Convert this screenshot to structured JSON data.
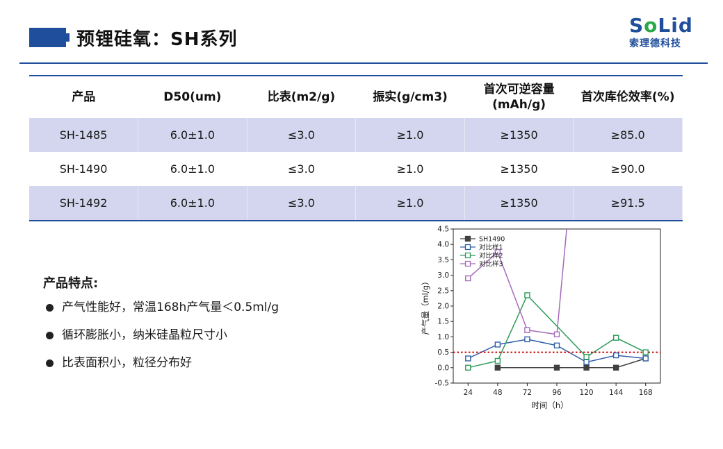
{
  "header": {
    "title": "预锂硅氧：SH系列"
  },
  "logo": {
    "mark_pre": "S",
    "mark_o": "o",
    "mark_li": "Li",
    "mark_d": "d",
    "cn": "索理德科技"
  },
  "table": {
    "headers": [
      {
        "line1": "产品",
        "line2": ""
      },
      {
        "line1": "D50(um)",
        "line2": ""
      },
      {
        "line1": "比表(m2/g)",
        "line2": ""
      },
      {
        "line1": "振实(g/cm3)",
        "line2": ""
      },
      {
        "line1": "首次可逆容量",
        "line2": "(mAh/g)"
      },
      {
        "line1": "首次库伦效率(%)",
        "line2": ""
      }
    ],
    "rows": [
      [
        "SH-1485",
        "6.0±1.0",
        "≤3.0",
        "≥1.0",
        "≥1350",
        "≥85.0"
      ],
      [
        "SH-1490",
        "6.0±1.0",
        "≤3.0",
        "≥1.0",
        "≥1350",
        "≥90.0"
      ],
      [
        "SH-1492",
        "6.0±1.0",
        "≤3.0",
        "≥1.0",
        "≥1350",
        "≥91.5"
      ]
    ]
  },
  "features": {
    "title": "产品特点:",
    "items": [
      "产气性能好，常温168h产气量＜0.5ml/g",
      "循环膨胀小，纳米硅晶粒尺寸小",
      "比表面积小，粒径分布好"
    ]
  },
  "chart_data": {
    "type": "line",
    "xlabel": "时间（h）",
    "ylabel": "产气量（ml/g）",
    "x": [
      24,
      48,
      72,
      96,
      120,
      144,
      168
    ],
    "x_tick_labels": [
      "24",
      "48",
      "72",
      "96",
      "120",
      "144",
      "168"
    ],
    "ylim": [
      -0.5,
      4.5
    ],
    "y_ticks": [
      -0.5,
      0.0,
      0.5,
      1.0,
      1.5,
      2.0,
      2.5,
      3.0,
      3.5,
      4.0,
      4.5
    ],
    "y_tick_labels": [
      "-0.5",
      "0.0",
      "0.5",
      "1.0",
      "1.5",
      "2.0",
      "2.5",
      "3.0",
      "3.5",
      "4.0",
      "4.5"
    ],
    "reference_line": {
      "y": 0.5,
      "color": "#cc0000",
      "style": "dotted"
    },
    "legend_position": "top-left",
    "grid": false,
    "series": [
      {
        "name": "SH1490",
        "color": "#404040",
        "marker": "filled-square",
        "values": [
          null,
          0.0,
          null,
          0.0,
          0.0,
          0.0,
          0.3
        ]
      },
      {
        "name": "对比样1",
        "color": "#2f5fa8",
        "marker": "open-square",
        "values": [
          0.3,
          0.75,
          0.92,
          0.72,
          0.18,
          0.4,
          0.3
        ]
      },
      {
        "name": "对比样2",
        "color": "#2e9a5a",
        "marker": "open-square",
        "values": [
          0.0,
          0.22,
          2.35,
          null,
          0.35,
          0.97,
          0.5
        ]
      },
      {
        "name": "对比样3",
        "color": "#a569bd",
        "marker": "open-square",
        "values": [
          2.9,
          3.75,
          1.22,
          1.08,
          null,
          null,
          null
        ],
        "continues_above_range_after_x": 96
      }
    ]
  }
}
